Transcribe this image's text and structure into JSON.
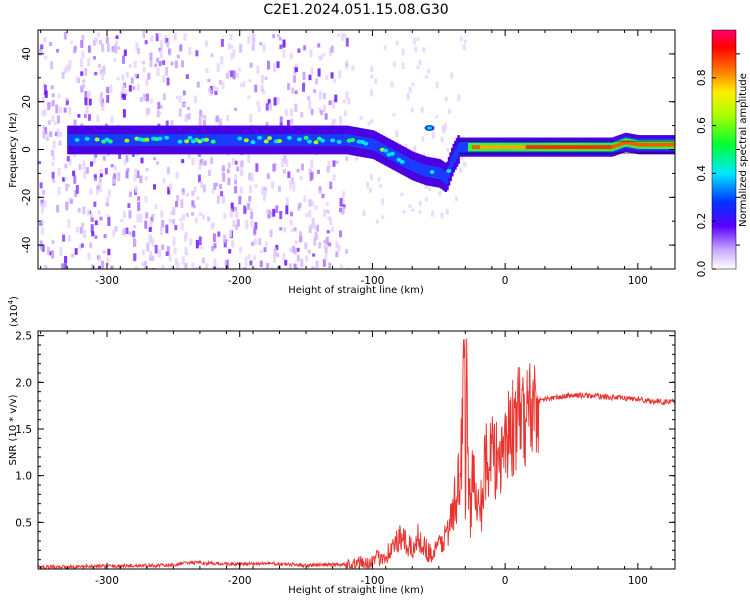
{
  "title": "C2E1.2024.051.15.08.G30",
  "colors": {
    "line": "#e8332f",
    "axis": "#000000"
  },
  "spectrogram": {
    "chart_data": {
      "type": "heatmap",
      "xlabel": "Height of straight line (km)",
      "ylabel": "Frequency (Hz)",
      "xlim": [
        -352,
        128
      ],
      "ylim": [
        -50,
        50
      ],
      "xticks": [
        -300,
        -200,
        -100,
        0,
        100
      ],
      "xtick_labels": [
        "-300",
        "-200",
        "-100",
        "0",
        "100"
      ],
      "yticks": [
        -40,
        -20,
        0,
        20,
        40
      ],
      "ytick_labels": [
        "-40",
        "-20",
        "0",
        "20",
        "40"
      ],
      "ridge": {
        "x": [
          -330,
          -300,
          -250,
          -200,
          -150,
          -120,
          -100,
          -90,
          -80,
          -70,
          -60,
          -50,
          -45,
          -40,
          -35,
          -30,
          -20,
          -10,
          0,
          20,
          50,
          80,
          90,
          100,
          128
        ],
        "y": [
          4,
          4,
          4,
          4,
          4,
          4,
          2,
          -1,
          -4,
          -7,
          -9,
          -10,
          -12,
          -4,
          1,
          1,
          1,
          1,
          1,
          1,
          1,
          1,
          3,
          2,
          2
        ]
      }
    },
    "colorbar": {
      "label": "Normalized spectral amplitude",
      "range": [
        0,
        1
      ],
      "ticks": [
        0.0,
        0.2,
        0.4,
        0.6,
        0.8
      ],
      "tick_labels": [
        "0.0",
        "0.2",
        "0.4",
        "0.6",
        "0.8"
      ]
    }
  },
  "snr": {
    "chart_data": {
      "type": "line",
      "xlabel": "Height of straight line (km)",
      "ylabel": "SNR (10 * v/v)",
      "scale_label": "(x10",
      "scale_exp": "4",
      "scale_close": ")",
      "xlim": [
        -352,
        128
      ],
      "ylim": [
        0,
        2.55
      ],
      "xticks": [
        -300,
        -200,
        -100,
        0,
        100
      ],
      "xtick_labels": [
        "-300",
        "-200",
        "-100",
        "0",
        "100"
      ],
      "yticks": [
        0.5,
        1.0,
        1.5,
        2.0,
        2.5
      ],
      "ytick_labels": [
        "0.5",
        "1.0",
        "1.5",
        "2.0",
        "2.5"
      ],
      "series": [
        {
          "x": [
            -352,
            -300,
            -250,
            -240,
            -200,
            -180,
            -150,
            -120,
            -110,
            -100,
            -95,
            -90,
            -85,
            -80,
            -75,
            -70,
            -65,
            -60,
            -55,
            -50,
            -45,
            -40,
            -36,
            -33,
            -31,
            -30,
            -29,
            -27,
            -25,
            -22,
            -20,
            -18,
            -15,
            -12,
            -10,
            -8,
            -5,
            -2,
            0,
            5,
            10,
            15,
            20,
            25,
            30,
            40,
            50,
            60,
            70,
            80,
            90,
            100,
            110,
            120,
            128
          ],
          "y": [
            0.02,
            0.03,
            0.04,
            0.07,
            0.05,
            0.06,
            0.04,
            0.05,
            0.06,
            0.08,
            0.12,
            0.16,
            0.22,
            0.32,
            0.28,
            0.2,
            0.35,
            0.22,
            0.15,
            0.25,
            0.35,
            0.55,
            0.75,
            1.2,
            2.5,
            0.55,
            1.9,
            0.6,
            0.9,
            0.8,
            1.1,
            0.7,
            1.2,
            1.0,
            1.3,
            1.1,
            1.2,
            1.35,
            1.4,
            1.5,
            1.6,
            1.65,
            1.75,
            1.8,
            1.82,
            1.84,
            1.86,
            1.86,
            1.85,
            1.84,
            1.83,
            1.82,
            1.8,
            1.79,
            1.8
          ]
        }
      ]
    }
  }
}
